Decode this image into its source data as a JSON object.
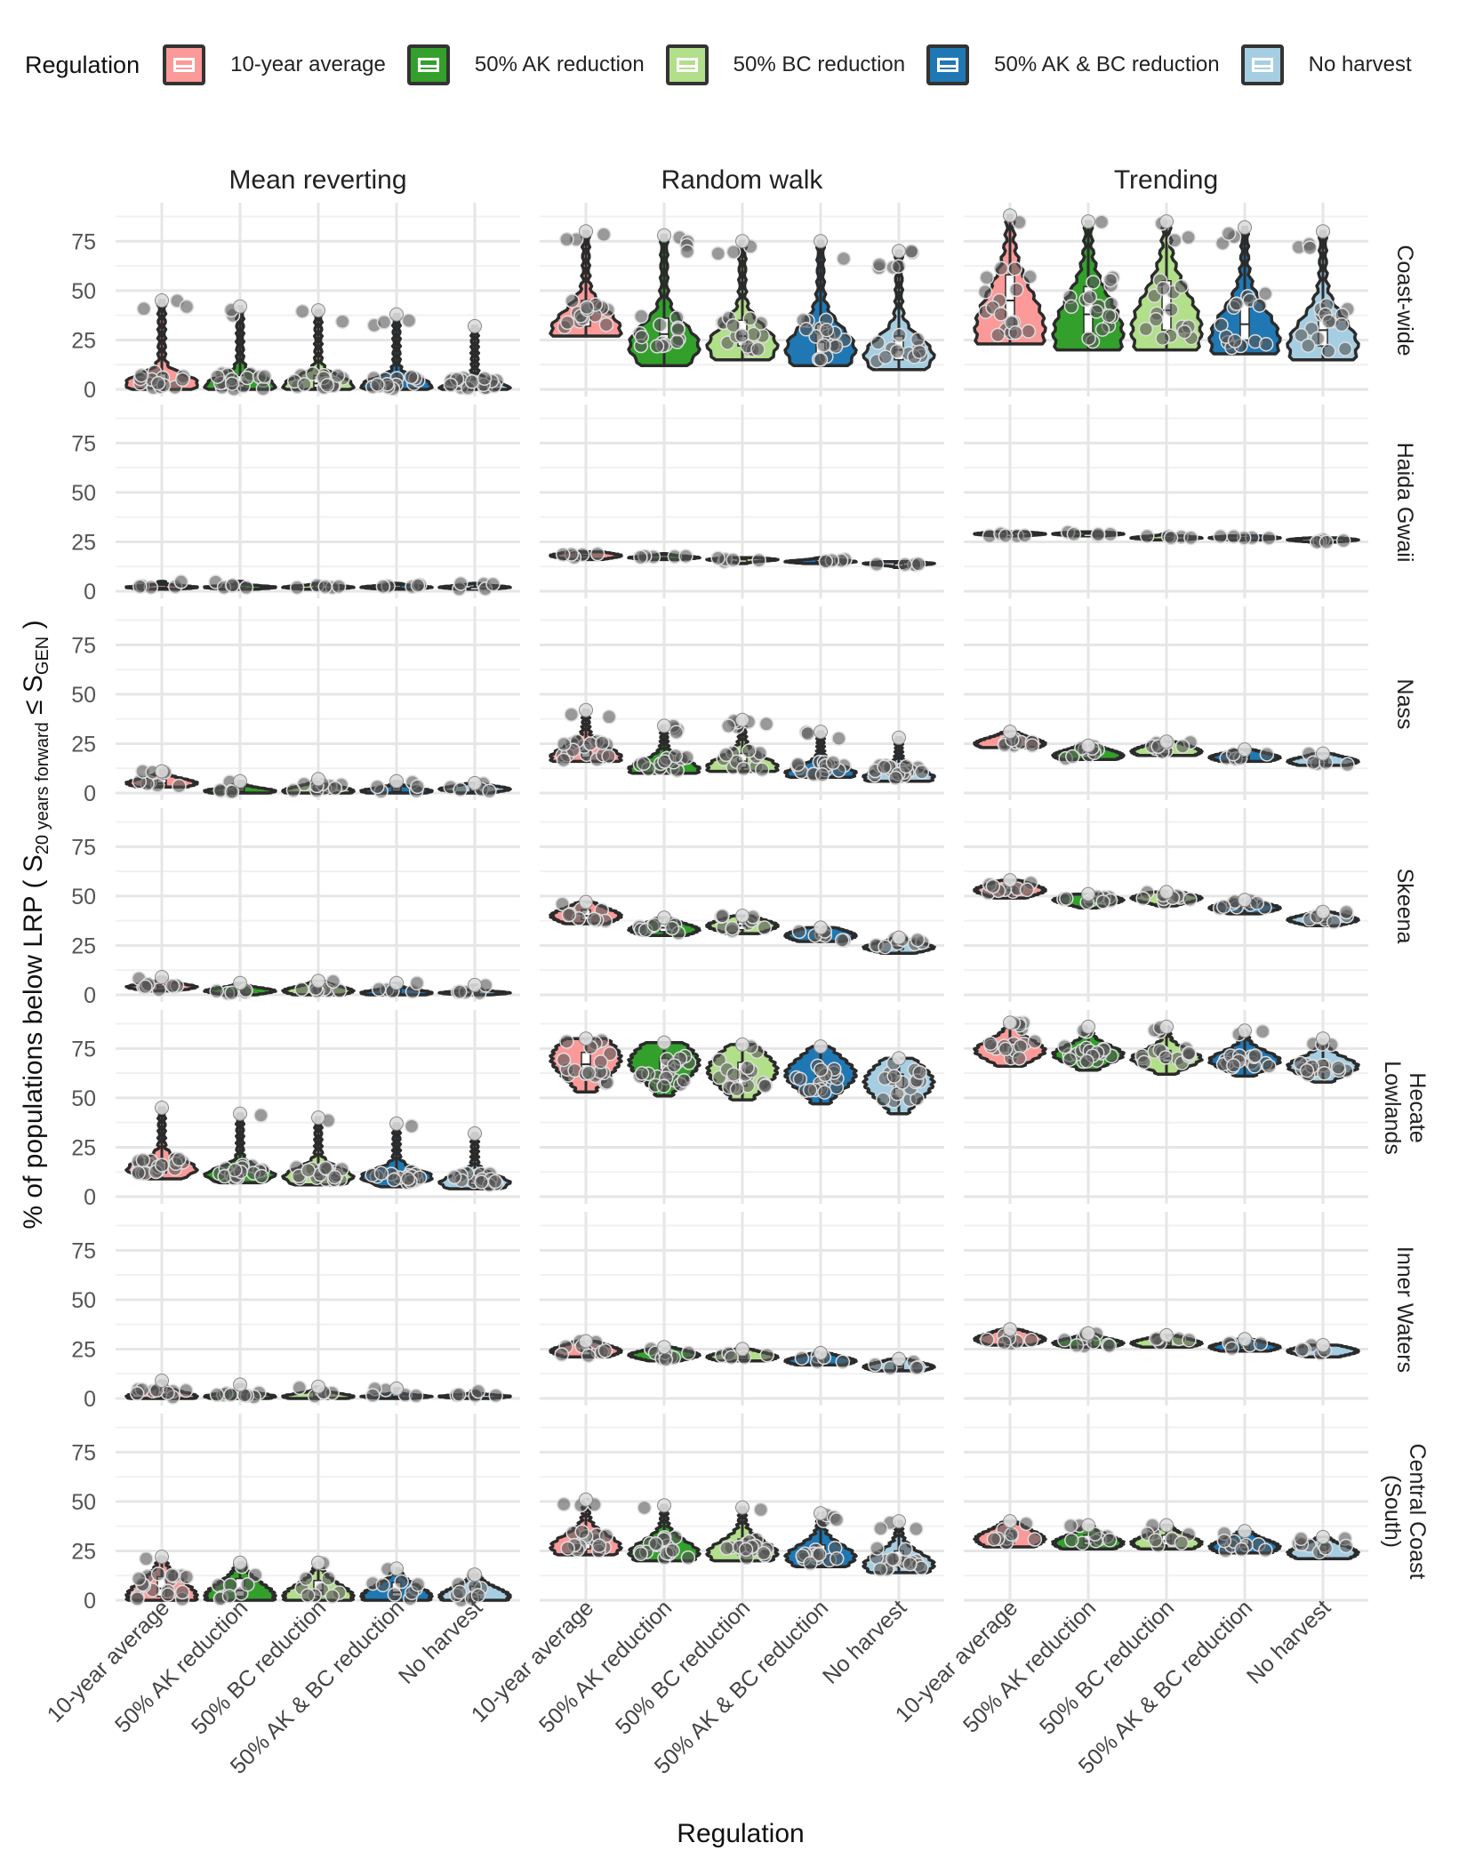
{
  "legend": {
    "title": "Regulation",
    "items": [
      {
        "label": "10-year average",
        "color": "#FB9A99"
      },
      {
        "label": "50% AK reduction",
        "color": "#33A02C"
      },
      {
        "label": "50% BC reduction",
        "color": "#B2DF8A"
      },
      {
        "label": "50% AK & BC reduction",
        "color": "#1F78B4"
      },
      {
        "label": "No harvest",
        "color": "#A6CEE3"
      }
    ]
  },
  "chart_data": {
    "type": "violin",
    "xlabel": "Regulation",
    "ylabel": "% of populations below LRP ( S",
    "ylabel_sub1": "20 years forward",
    "ylabel_mid": " ≤ S",
    "ylabel_sub2": "GEN",
    "ylabel_end": " )",
    "ylim": [
      0,
      90
    ],
    "yticks": [
      0,
      25,
      50,
      75
    ],
    "categories": [
      "10-year average",
      "50% AK reduction",
      "50% BC reduction",
      "50% AK & BC reduction",
      "No harvest"
    ],
    "columns": [
      "Mean reverting",
      "Random walk",
      "Trending"
    ],
    "rows": [
      "Coast-wide",
      "Haida Gwaii",
      "Nass",
      "Skeena",
      "Hecate Lowlands",
      "Inner Waters",
      "Central Coast (South)"
    ],
    "panels": [
      [
        [
          {
            "min": 0,
            "q1": 2,
            "med": 4,
            "q3": 8,
            "max": 45,
            "mode": 3
          },
          {
            "min": 0,
            "q1": 1,
            "med": 3,
            "q3": 7,
            "max": 42,
            "mode": 2
          },
          {
            "min": 0,
            "q1": 1,
            "med": 3,
            "q3": 7,
            "max": 40,
            "mode": 2
          },
          {
            "min": 0,
            "q1": 1,
            "med": 3,
            "q3": 6,
            "max": 38,
            "mode": 2
          },
          {
            "min": 0,
            "q1": 1,
            "med": 2,
            "q3": 5,
            "max": 32,
            "mode": 1
          }
        ],
        [
          {
            "min": 27,
            "q1": 32,
            "med": 38,
            "q3": 45,
            "max": 80,
            "mode": 30
          },
          {
            "min": 12,
            "q1": 22,
            "med": 28,
            "q3": 36,
            "max": 78,
            "mode": 22
          },
          {
            "min": 15,
            "q1": 22,
            "med": 27,
            "q3": 35,
            "max": 75,
            "mode": 22
          },
          {
            "min": 12,
            "q1": 18,
            "med": 24,
            "q3": 33,
            "max": 75,
            "mode": 20
          },
          {
            "min": 10,
            "q1": 15,
            "med": 20,
            "q3": 27,
            "max": 70,
            "mode": 17
          }
        ],
        [
          {
            "min": 23,
            "q1": 32,
            "med": 45,
            "q3": 58,
            "max": 88,
            "mode": 30
          },
          {
            "min": 20,
            "q1": 28,
            "med": 38,
            "q3": 52,
            "max": 85,
            "mode": 28
          },
          {
            "min": 20,
            "q1": 30,
            "med": 40,
            "q3": 55,
            "max": 85,
            "mode": 30
          },
          {
            "min": 18,
            "q1": 25,
            "med": 33,
            "q3": 45,
            "max": 82,
            "mode": 25
          },
          {
            "min": 15,
            "q1": 22,
            "med": 30,
            "q3": 40,
            "max": 80,
            "mode": 22
          }
        ]
      ],
      [
        [
          {
            "min": 1,
            "q1": 2,
            "med": 2,
            "q3": 3,
            "max": 5,
            "mode": 2
          },
          {
            "min": 1,
            "q1": 2,
            "med": 2,
            "q3": 3,
            "max": 5,
            "mode": 2
          },
          {
            "min": 1,
            "q1": 2,
            "med": 2,
            "q3": 3,
            "max": 4,
            "mode": 2
          },
          {
            "min": 1,
            "q1": 2,
            "med": 2,
            "q3": 3,
            "max": 4,
            "mode": 2
          },
          {
            "min": 1,
            "q1": 1,
            "med": 2,
            "q3": 2,
            "max": 4,
            "mode": 2
          }
        ],
        [
          {
            "min": 16,
            "q1": 17,
            "med": 18,
            "q3": 19,
            "max": 20,
            "mode": 18
          },
          {
            "min": 16,
            "q1": 17,
            "med": 17,
            "q3": 18,
            "max": 19,
            "mode": 17
          },
          {
            "min": 14,
            "q1": 15,
            "med": 16,
            "q3": 16,
            "max": 17,
            "mode": 16
          },
          {
            "min": 14,
            "q1": 15,
            "med": 15,
            "q3": 16,
            "max": 17,
            "mode": 15
          },
          {
            "min": 12,
            "q1": 13,
            "med": 14,
            "q3": 14,
            "max": 15,
            "mode": 14
          }
        ],
        [
          {
            "min": 28,
            "q1": 28,
            "med": 29,
            "q3": 29,
            "max": 30,
            "mode": 29
          },
          {
            "min": 28,
            "q1": 28,
            "med": 29,
            "q3": 29,
            "max": 30,
            "mode": 29
          },
          {
            "min": 26,
            "q1": 27,
            "med": 27,
            "q3": 28,
            "max": 29,
            "mode": 27
          },
          {
            "min": 26,
            "q1": 27,
            "med": 27,
            "q3": 28,
            "max": 28,
            "mode": 27
          },
          {
            "min": 24,
            "q1": 25,
            "med": 26,
            "q3": 26,
            "max": 27,
            "mode": 26
          }
        ]
      ],
      [
        [
          {
            "min": 3,
            "q1": 4,
            "med": 5,
            "q3": 7,
            "max": 11,
            "mode": 5
          },
          {
            "min": 0,
            "q1": 1,
            "med": 2,
            "q3": 3,
            "max": 6,
            "mode": 1
          },
          {
            "min": 0,
            "q1": 1,
            "med": 2,
            "q3": 4,
            "max": 7,
            "mode": 1
          },
          {
            "min": 0,
            "q1": 1,
            "med": 2,
            "q3": 3,
            "max": 6,
            "mode": 1
          },
          {
            "min": 0,
            "q1": 1,
            "med": 2,
            "q3": 3,
            "max": 5,
            "mode": 2
          }
        ],
        [
          {
            "min": 16,
            "q1": 18,
            "med": 21,
            "q3": 25,
            "max": 42,
            "mode": 18
          },
          {
            "min": 10,
            "q1": 12,
            "med": 14,
            "q3": 18,
            "max": 34,
            "mode": 12
          },
          {
            "min": 11,
            "q1": 13,
            "med": 16,
            "q3": 20,
            "max": 37,
            "mode": 13
          },
          {
            "min": 8,
            "q1": 10,
            "med": 12,
            "q3": 15,
            "max": 31,
            "mode": 10
          },
          {
            "min": 6,
            "q1": 8,
            "med": 10,
            "q3": 13,
            "max": 28,
            "mode": 8
          }
        ],
        [
          {
            "min": 23,
            "q1": 24,
            "med": 26,
            "q3": 28,
            "max": 31,
            "mode": 25
          },
          {
            "min": 17,
            "q1": 18,
            "med": 20,
            "q3": 22,
            "max": 24,
            "mode": 19
          },
          {
            "min": 19,
            "q1": 20,
            "med": 22,
            "q3": 24,
            "max": 26,
            "mode": 21
          },
          {
            "min": 16,
            "q1": 17,
            "med": 18,
            "q3": 20,
            "max": 22,
            "mode": 18
          },
          {
            "min": 14,
            "q1": 15,
            "med": 16,
            "q3": 18,
            "max": 20,
            "mode": 16
          }
        ]
      ],
      [
        [
          {
            "min": 2,
            "q1": 3,
            "med": 4,
            "q3": 5,
            "max": 9,
            "mode": 4
          },
          {
            "min": 0,
            "q1": 1,
            "med": 2,
            "q3": 3,
            "max": 6,
            "mode": 2
          },
          {
            "min": 0,
            "q1": 1,
            "med": 2,
            "q3": 4,
            "max": 7,
            "mode": 2
          },
          {
            "min": 0,
            "q1": 1,
            "med": 2,
            "q3": 3,
            "max": 6,
            "mode": 1
          },
          {
            "min": 0,
            "q1": 1,
            "med": 1,
            "q3": 2,
            "max": 5,
            "mode": 1
          }
        ],
        [
          {
            "min": 36,
            "q1": 38,
            "med": 40,
            "q3": 43,
            "max": 47,
            "mode": 40
          },
          {
            "min": 30,
            "q1": 32,
            "med": 34,
            "q3": 36,
            "max": 39,
            "mode": 33
          },
          {
            "min": 31,
            "q1": 33,
            "med": 35,
            "q3": 37,
            "max": 40,
            "mode": 35
          },
          {
            "min": 27,
            "q1": 28,
            "med": 30,
            "q3": 32,
            "max": 34,
            "mode": 30
          },
          {
            "min": 21,
            "q1": 23,
            "med": 24,
            "q3": 26,
            "max": 29,
            "mode": 24
          }
        ],
        [
          {
            "min": 49,
            "q1": 51,
            "med": 53,
            "q3": 55,
            "max": 58,
            "mode": 53
          },
          {
            "min": 44,
            "q1": 46,
            "med": 48,
            "q3": 49,
            "max": 51,
            "mode": 48
          },
          {
            "min": 45,
            "q1": 47,
            "med": 49,
            "q3": 50,
            "max": 52,
            "mode": 49
          },
          {
            "min": 41,
            "q1": 43,
            "med": 44,
            "q3": 46,
            "max": 48,
            "mode": 44
          },
          {
            "min": 35,
            "q1": 37,
            "med": 39,
            "q3": 40,
            "max": 42,
            "mode": 38
          }
        ]
      ],
      [
        [
          {
            "min": 9,
            "q1": 12,
            "med": 14,
            "q3": 18,
            "max": 45,
            "mode": 14
          },
          {
            "min": 7,
            "q1": 10,
            "med": 12,
            "q3": 15,
            "max": 42,
            "mode": 11
          },
          {
            "min": 6,
            "q1": 9,
            "med": 11,
            "q3": 15,
            "max": 40,
            "mode": 10
          },
          {
            "min": 5,
            "q1": 8,
            "med": 10,
            "q3": 13,
            "max": 37,
            "mode": 10
          },
          {
            "min": 4,
            "q1": 6,
            "med": 8,
            "q3": 11,
            "max": 32,
            "mode": 7
          }
        ],
        [
          {
            "min": 53,
            "q1": 60,
            "med": 67,
            "q3": 73,
            "max": 80,
            "mode": 70
          },
          {
            "min": 51,
            "q1": 58,
            "med": 64,
            "q3": 70,
            "max": 78,
            "mode": 68
          },
          {
            "min": 49,
            "q1": 56,
            "med": 61,
            "q3": 68,
            "max": 77,
            "mode": 64
          },
          {
            "min": 47,
            "q1": 55,
            "med": 60,
            "q3": 66,
            "max": 76,
            "mode": 62
          },
          {
            "min": 42,
            "q1": 50,
            "med": 55,
            "q3": 62,
            "max": 70,
            "mode": 58
          }
        ],
        [
          {
            "min": 66,
            "q1": 71,
            "med": 74,
            "q3": 78,
            "max": 88,
            "mode": 74
          },
          {
            "min": 64,
            "q1": 69,
            "med": 72,
            "q3": 75,
            "max": 86,
            "mode": 72
          },
          {
            "min": 62,
            "q1": 68,
            "med": 70,
            "q3": 74,
            "max": 86,
            "mode": 70
          },
          {
            "min": 61,
            "q1": 66,
            "med": 69,
            "q3": 72,
            "max": 84,
            "mode": 69
          },
          {
            "min": 58,
            "q1": 63,
            "med": 66,
            "q3": 69,
            "max": 80,
            "mode": 66
          }
        ]
      ],
      [
        [
          {
            "min": 0,
            "q1": 1,
            "med": 2,
            "q3": 4,
            "max": 9,
            "mode": 1
          },
          {
            "min": 0,
            "q1": 1,
            "med": 1,
            "q3": 3,
            "max": 7,
            "mode": 1
          },
          {
            "min": 0,
            "q1": 1,
            "med": 1,
            "q3": 3,
            "max": 6,
            "mode": 1
          },
          {
            "min": 0,
            "q1": 1,
            "med": 1,
            "q3": 2,
            "max": 5,
            "mode": 1
          },
          {
            "min": 0,
            "q1": 1,
            "med": 1,
            "q3": 2,
            "max": 4,
            "mode": 1
          }
        ],
        [
          {
            "min": 21,
            "q1": 22,
            "med": 24,
            "q3": 26,
            "max": 29,
            "mode": 24
          },
          {
            "min": 19,
            "q1": 20,
            "med": 22,
            "q3": 23,
            "max": 26,
            "mode": 22
          },
          {
            "min": 19,
            "q1": 20,
            "med": 21,
            "q3": 23,
            "max": 25,
            "mode": 21
          },
          {
            "min": 17,
            "q1": 18,
            "med": 19,
            "q3": 21,
            "max": 23,
            "mode": 19
          },
          {
            "min": 14,
            "q1": 15,
            "med": 16,
            "q3": 18,
            "max": 20,
            "mode": 16
          }
        ],
        [
          {
            "min": 27,
            "q1": 28,
            "med": 30,
            "q3": 32,
            "max": 35,
            "mode": 30
          },
          {
            "min": 26,
            "q1": 27,
            "med": 28,
            "q3": 30,
            "max": 33,
            "mode": 28
          },
          {
            "min": 26,
            "q1": 27,
            "med": 28,
            "q3": 30,
            "max": 32,
            "mode": 28
          },
          {
            "min": 24,
            "q1": 25,
            "med": 26,
            "q3": 28,
            "max": 30,
            "mode": 26
          },
          {
            "min": 21,
            "q1": 22,
            "med": 24,
            "q3": 25,
            "max": 27,
            "mode": 24
          }
        ]
      ],
      [
        [
          {
            "min": 0,
            "q1": 2,
            "med": 6,
            "q3": 12,
            "max": 22,
            "mode": 2
          },
          {
            "min": 0,
            "q1": 2,
            "med": 5,
            "q3": 11,
            "max": 19,
            "mode": 2
          },
          {
            "min": 0,
            "q1": 2,
            "med": 5,
            "q3": 10,
            "max": 19,
            "mode": 2
          },
          {
            "min": 0,
            "q1": 2,
            "med": 4,
            "q3": 9,
            "max": 16,
            "mode": 2
          },
          {
            "min": 0,
            "q1": 1,
            "med": 3,
            "q3": 7,
            "max": 13,
            "mode": 2
          }
        ],
        [
          {
            "min": 23,
            "q1": 26,
            "med": 29,
            "q3": 34,
            "max": 51,
            "mode": 27
          },
          {
            "min": 20,
            "q1": 23,
            "med": 26,
            "q3": 31,
            "max": 48,
            "mode": 24
          },
          {
            "min": 20,
            "q1": 23,
            "med": 26,
            "q3": 31,
            "max": 47,
            "mode": 24
          },
          {
            "min": 17,
            "q1": 20,
            "med": 23,
            "q3": 28,
            "max": 44,
            "mode": 22
          },
          {
            "min": 14,
            "q1": 17,
            "med": 20,
            "q3": 25,
            "max": 40,
            "mode": 18
          }
        ],
        [
          {
            "min": 27,
            "q1": 29,
            "med": 32,
            "q3": 35,
            "max": 40,
            "mode": 31
          },
          {
            "min": 26,
            "q1": 28,
            "med": 30,
            "q3": 33,
            "max": 38,
            "mode": 29
          },
          {
            "min": 26,
            "q1": 28,
            "med": 30,
            "q3": 33,
            "max": 38,
            "mode": 29
          },
          {
            "min": 24,
            "q1": 26,
            "med": 28,
            "q3": 31,
            "max": 35,
            "mode": 27
          },
          {
            "min": 21,
            "q1": 23,
            "med": 25,
            "q3": 28,
            "max": 32,
            "mode": 24
          }
        ]
      ]
    ]
  }
}
